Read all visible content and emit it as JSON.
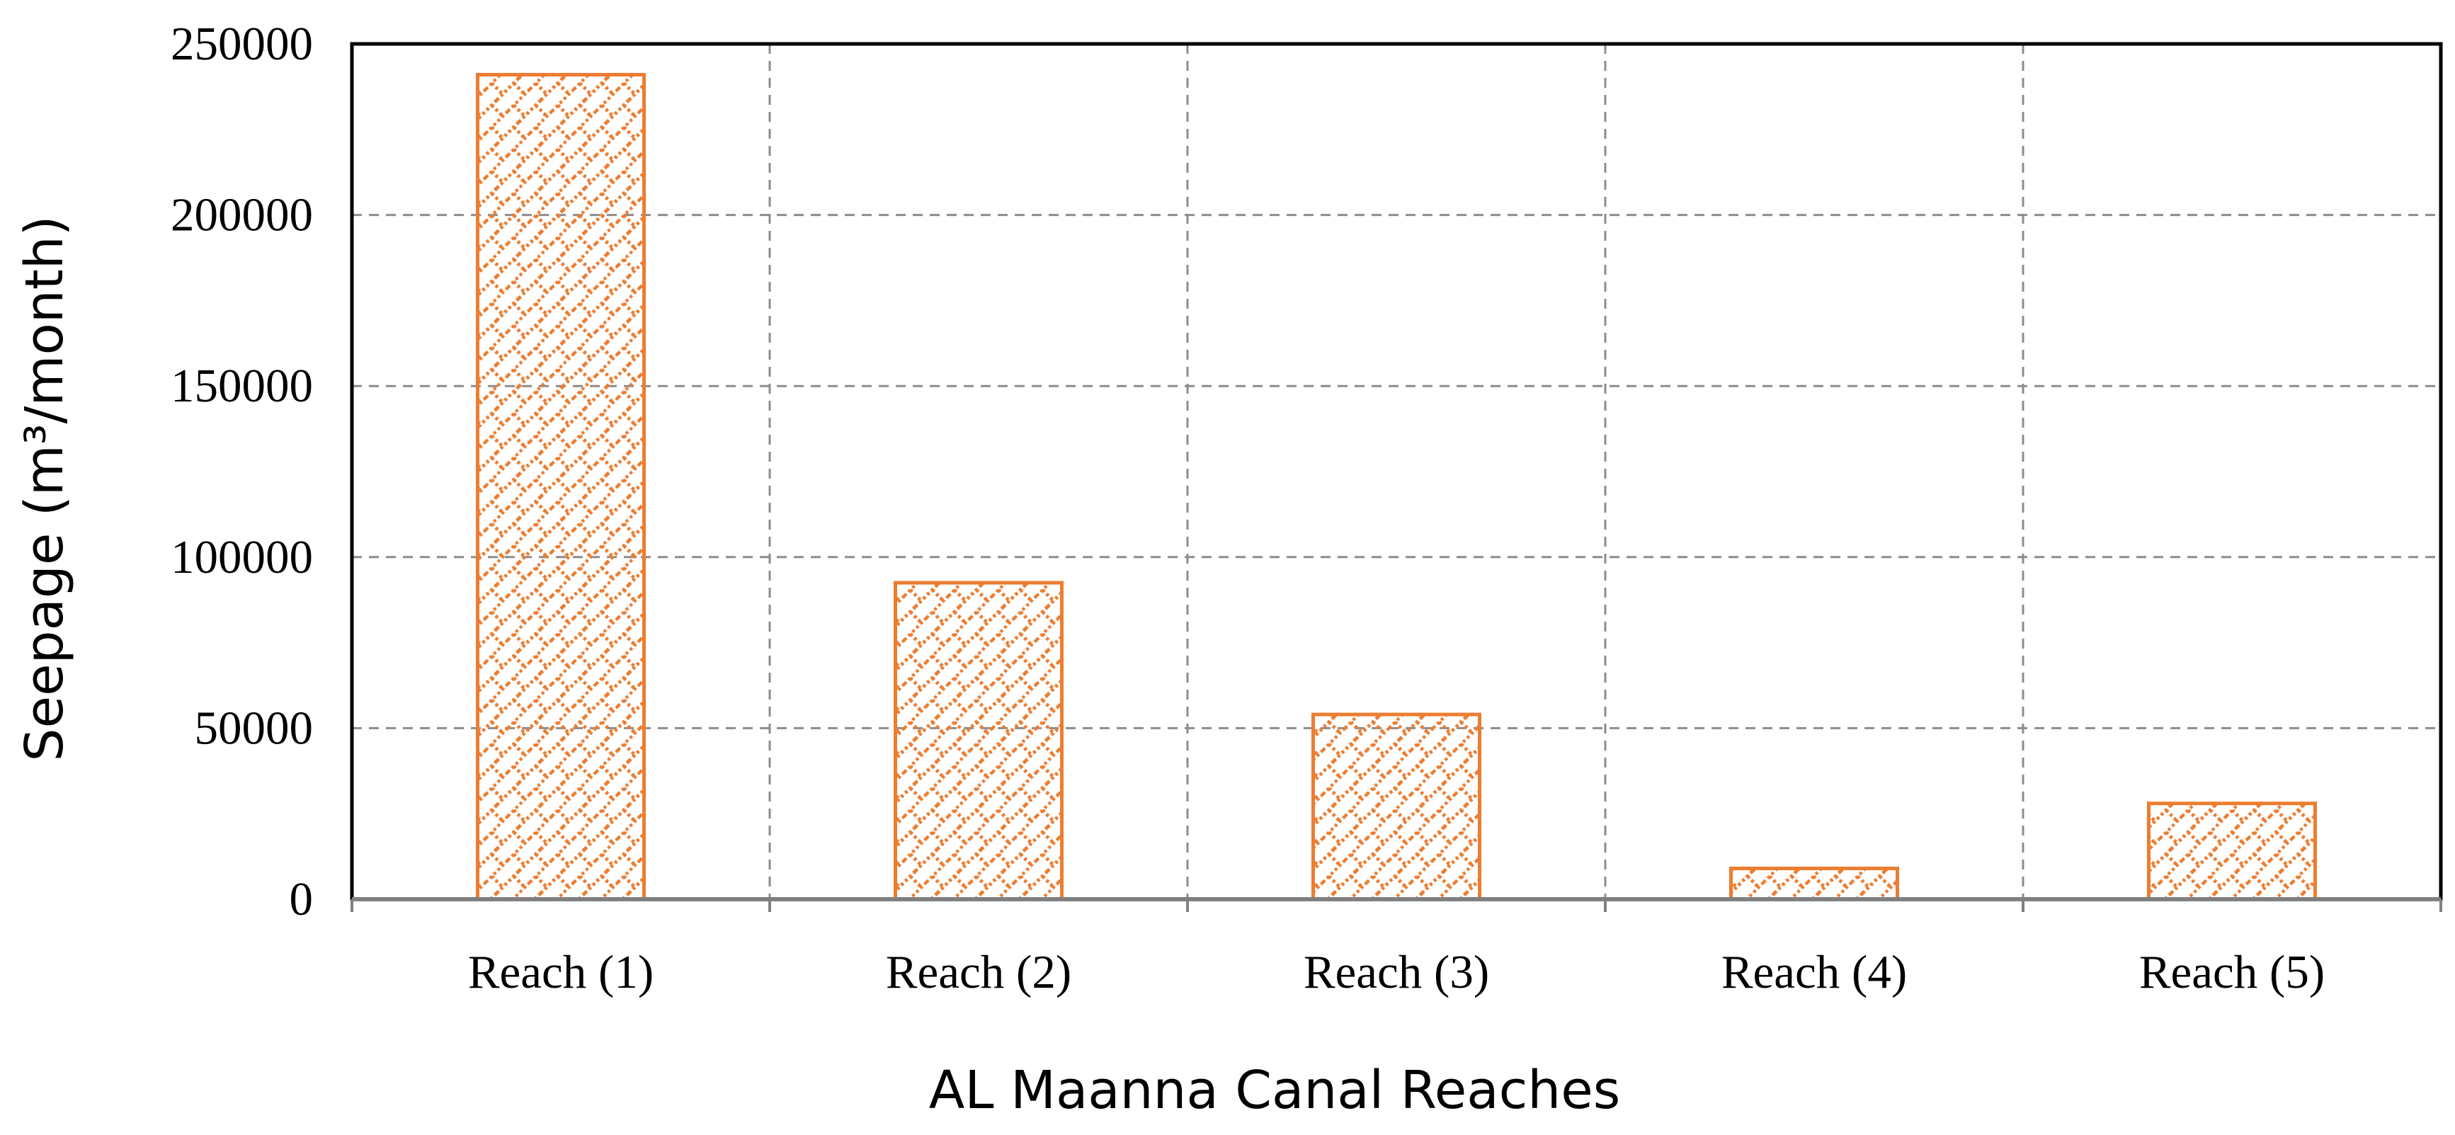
{
  "chart_data": {
    "type": "bar",
    "categories": [
      "Reach (1)",
      "Reach (2)",
      "Reach (3)",
      "Reach (4)",
      "Reach (5)"
    ],
    "values": [
      241000,
      92500,
      54000,
      9000,
      28000
    ],
    "title": "",
    "xlabel": "AL Maanna Canal Reaches",
    "ylabel": "Seepage (m³/month)",
    "ylim": [
      0,
      250000
    ],
    "yticks": [
      0,
      50000,
      100000,
      150000,
      200000,
      250000
    ],
    "grid": true,
    "bar_color": "#ED7D31",
    "bar_pattern": "diagonal-brick"
  }
}
